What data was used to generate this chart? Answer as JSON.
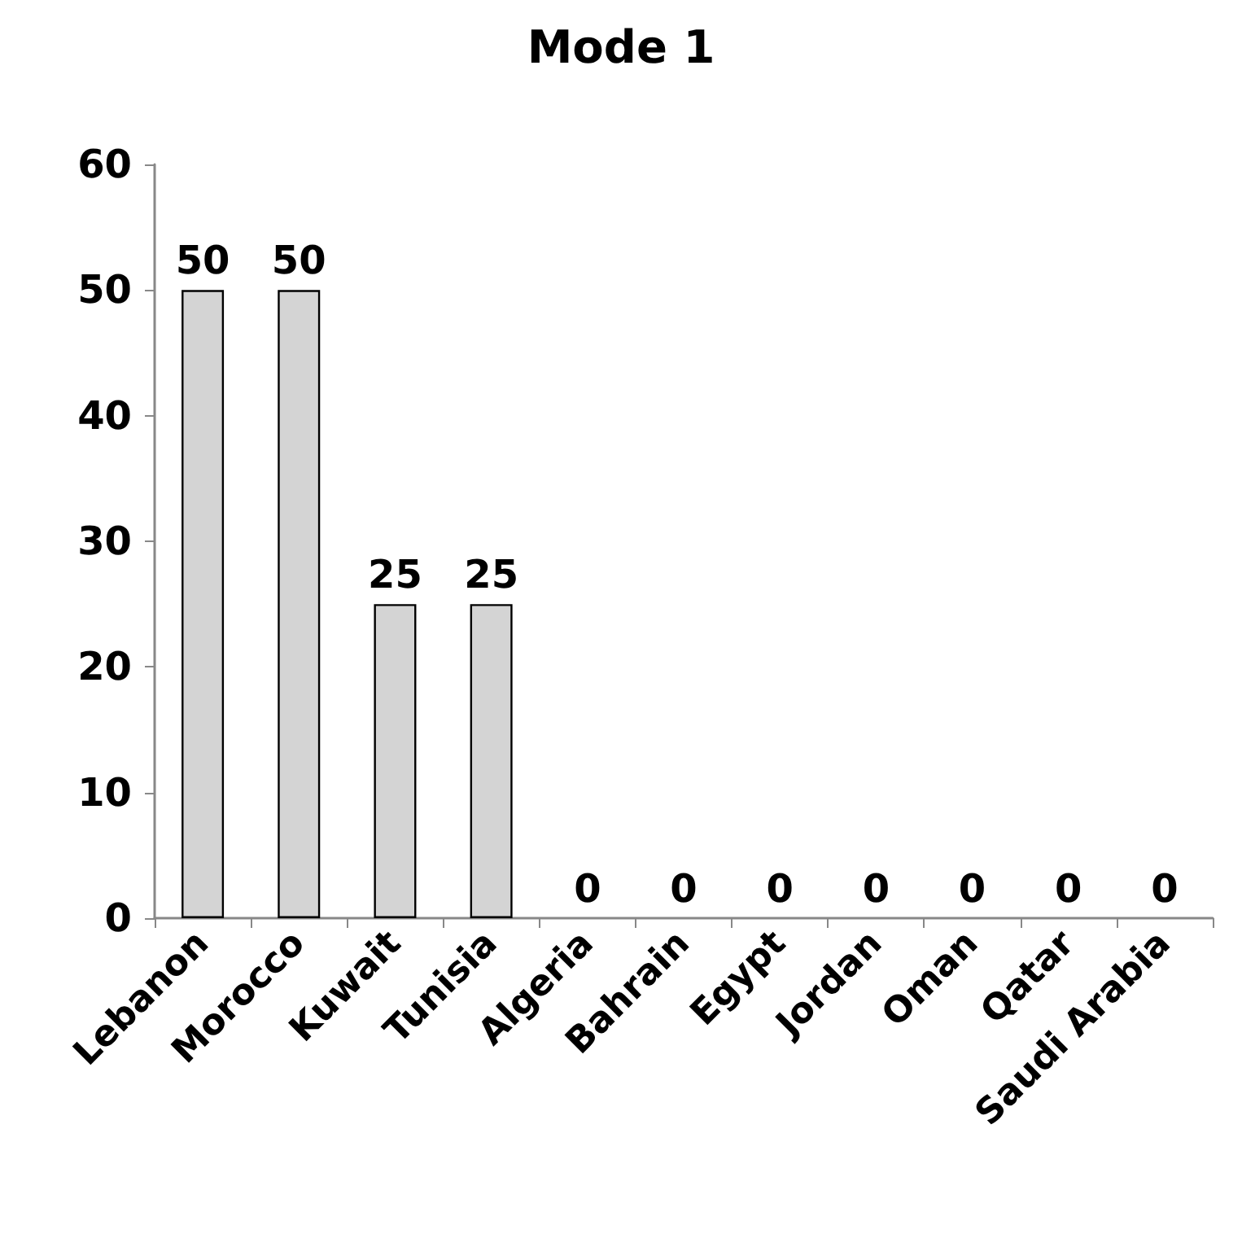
{
  "chart_data": {
    "type": "bar",
    "title": "Mode 1",
    "categories": [
      "Lebanon",
      "Morocco",
      "Kuwait",
      "Tunisia",
      "Algeria",
      "Bahrain",
      "Egypt",
      "Jordan",
      "Oman",
      "Qatar",
      "Saudi Arabia"
    ],
    "values": [
      50,
      50,
      25,
      25,
      0,
      0,
      0,
      0,
      0,
      0,
      0
    ],
    "color": "#d4d4d4",
    "ylim": [
      0,
      60
    ],
    "yticks": [
      0,
      10,
      20,
      30,
      40,
      50,
      60
    ],
    "data_labels": true,
    "grid": false
  }
}
